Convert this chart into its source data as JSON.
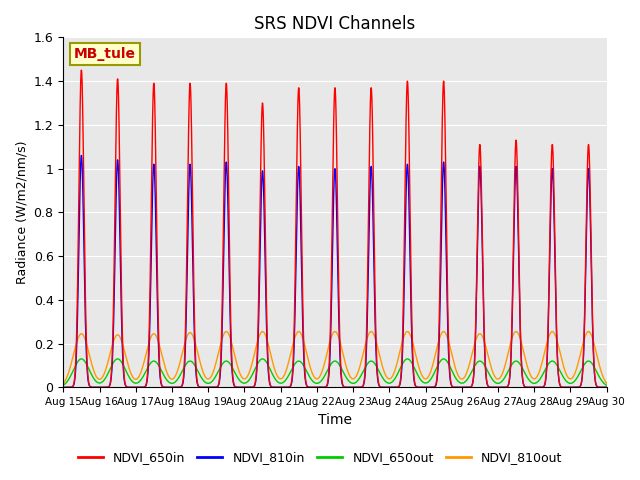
{
  "title": "SRS NDVI Channels",
  "xlabel": "Time",
  "ylabel": "Radiance (W/m2/nm/s)",
  "annotation": "MB_tule",
  "annotation_color": "#cc0000",
  "annotation_bg": "#ffffcc",
  "annotation_border": "#999900",
  "ylim": [
    0.0,
    1.6
  ],
  "yticks": [
    0.0,
    0.2,
    0.4,
    0.6,
    0.8,
    1.0,
    1.2,
    1.4,
    1.6
  ],
  "colors": {
    "NDVI_650in": "#ff0000",
    "NDVI_810in": "#0000ff",
    "NDVI_650out": "#00cc00",
    "NDVI_810out": "#ff9900"
  },
  "n_days": 15,
  "start_day": 15,
  "peaks_650in": [
    1.45,
    1.41,
    1.39,
    1.39,
    1.39,
    1.3,
    1.37,
    1.37,
    1.37,
    1.4,
    1.4,
    1.11,
    1.13,
    1.11,
    1.11
  ],
  "peaks_810in": [
    1.06,
    1.04,
    1.02,
    1.02,
    1.03,
    0.99,
    1.01,
    1.0,
    1.01,
    1.02,
    1.03,
    1.01,
    1.01,
    1.0,
    1.0
  ],
  "peaks_650out": [
    0.13,
    0.13,
    0.12,
    0.12,
    0.12,
    0.13,
    0.12,
    0.12,
    0.12,
    0.13,
    0.13,
    0.12,
    0.12,
    0.12,
    0.12
  ],
  "peaks_810out": [
    0.245,
    0.24,
    0.245,
    0.25,
    0.255,
    0.255,
    0.255,
    0.255,
    0.255,
    0.255,
    0.255,
    0.245,
    0.255,
    0.255,
    0.255
  ],
  "background_color": "#e8e8e8",
  "legend_colors": [
    "#ff0000",
    "#0000ff",
    "#00cc00",
    "#ff9900"
  ],
  "legend_labels": [
    "NDVI_650in",
    "NDVI_810in",
    "NDVI_650out",
    "NDVI_810out"
  ]
}
